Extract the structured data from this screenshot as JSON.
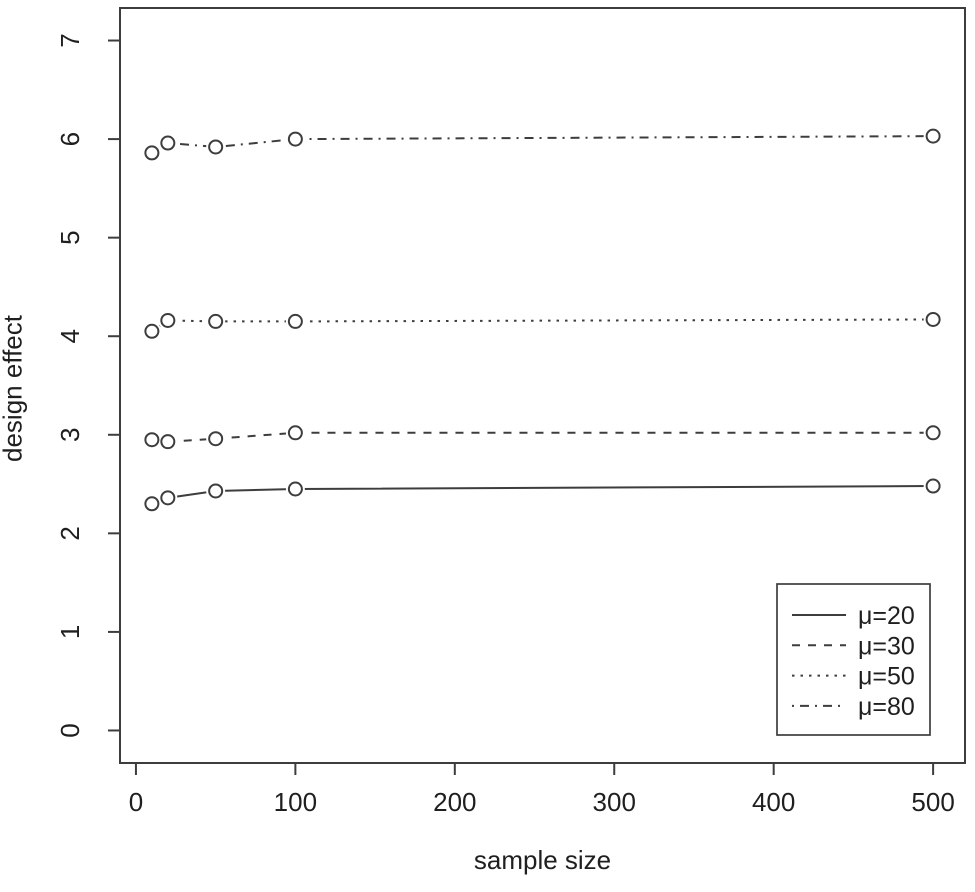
{
  "figure": {
    "background": "#ffffff",
    "line_color": "#3d3d3d",
    "text_color": "#1f1f1f"
  },
  "chart_data": {
    "type": "line",
    "title": "",
    "xlabel": "sample size",
    "ylabel": "design effect",
    "x": [
      10,
      20,
      50,
      100,
      500
    ],
    "series": [
      {
        "name": "μ=20",
        "linestyle": "solid",
        "values": [
          2.3,
          2.36,
          2.43,
          2.45,
          2.48
        ]
      },
      {
        "name": "μ=30",
        "linestyle": "dashed",
        "values": [
          2.95,
          2.93,
          2.96,
          3.02,
          3.02
        ]
      },
      {
        "name": "μ=50",
        "linestyle": "dotted",
        "values": [
          4.05,
          4.16,
          4.15,
          4.15,
          4.17
        ]
      },
      {
        "name": "μ=80",
        "linestyle": "dashdot",
        "values": [
          5.86,
          5.96,
          5.92,
          6.0,
          6.03
        ]
      }
    ],
    "x_ticks": [
      0,
      100,
      200,
      300,
      400,
      500
    ],
    "y_ticks": [
      0,
      1,
      2,
      3,
      4,
      5,
      6,
      7
    ],
    "xlim": [
      -10,
      520
    ],
    "ylim": [
      -0.33,
      7.33
    ],
    "grid": false,
    "marker": "open-circle",
    "legend_position": "bottom-right"
  }
}
